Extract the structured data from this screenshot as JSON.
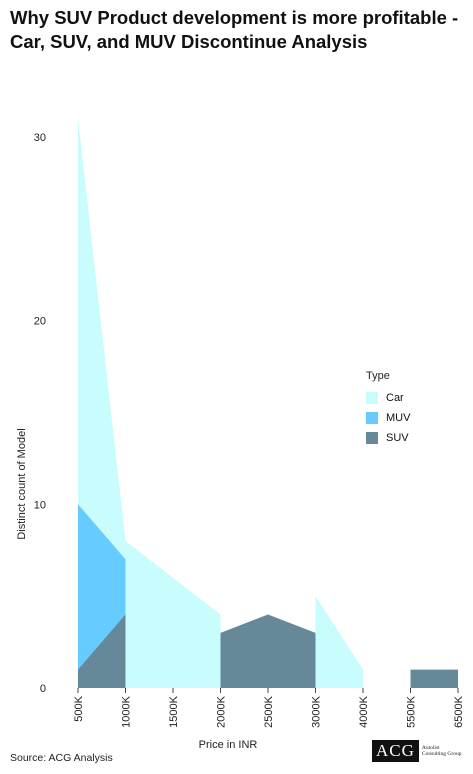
{
  "chart_data": {
    "type": "area",
    "title": "Why SUV Product development is more profitable - Car, SUV, and MUV Discontinue Analysis",
    "xlabel": "Price in INR",
    "ylabel": "Distinct count of Model",
    "categories": [
      "500K",
      "1000K",
      "1500K",
      "2000K",
      "2500K",
      "3000K",
      "4000K",
      "5500K",
      "6500K"
    ],
    "ylim": [
      0,
      32
    ],
    "yticks": [
      0,
      10,
      20,
      30
    ],
    "legend_title": "Type",
    "legend_position": "right",
    "grid": false,
    "series": [
      {
        "name": "Car",
        "color": "#c9fcfc",
        "segments": [
          {
            "x": [
              "500K",
              "1000K"
            ],
            "y": [
              31,
              8
            ]
          },
          {
            "x": [
              "1000K",
              "2000K"
            ],
            "y": [
              8,
              4
            ]
          },
          {
            "x": [
              "3000K",
              "4000K"
            ],
            "y": [
              5,
              1
            ]
          }
        ]
      },
      {
        "name": "MUV",
        "color": "#66ccff",
        "segments": [
          {
            "x": [
              "500K",
              "1000K"
            ],
            "y": [
              10,
              7
            ]
          }
        ]
      },
      {
        "name": "SUV",
        "color": "#66899a",
        "segments": [
          {
            "x": [
              "500K",
              "1000K"
            ],
            "y": [
              1,
              4
            ]
          },
          {
            "x": [
              "2000K",
              "2500K",
              "3000K"
            ],
            "y": [
              3,
              4,
              3
            ]
          },
          {
            "x": [
              "5500K",
              "6500K"
            ],
            "y": [
              1,
              1
            ]
          }
        ]
      }
    ]
  },
  "source": "Source: ACG Analysis",
  "logo": {
    "mark": "ACG",
    "text": "Autolist Consulting Group"
  }
}
